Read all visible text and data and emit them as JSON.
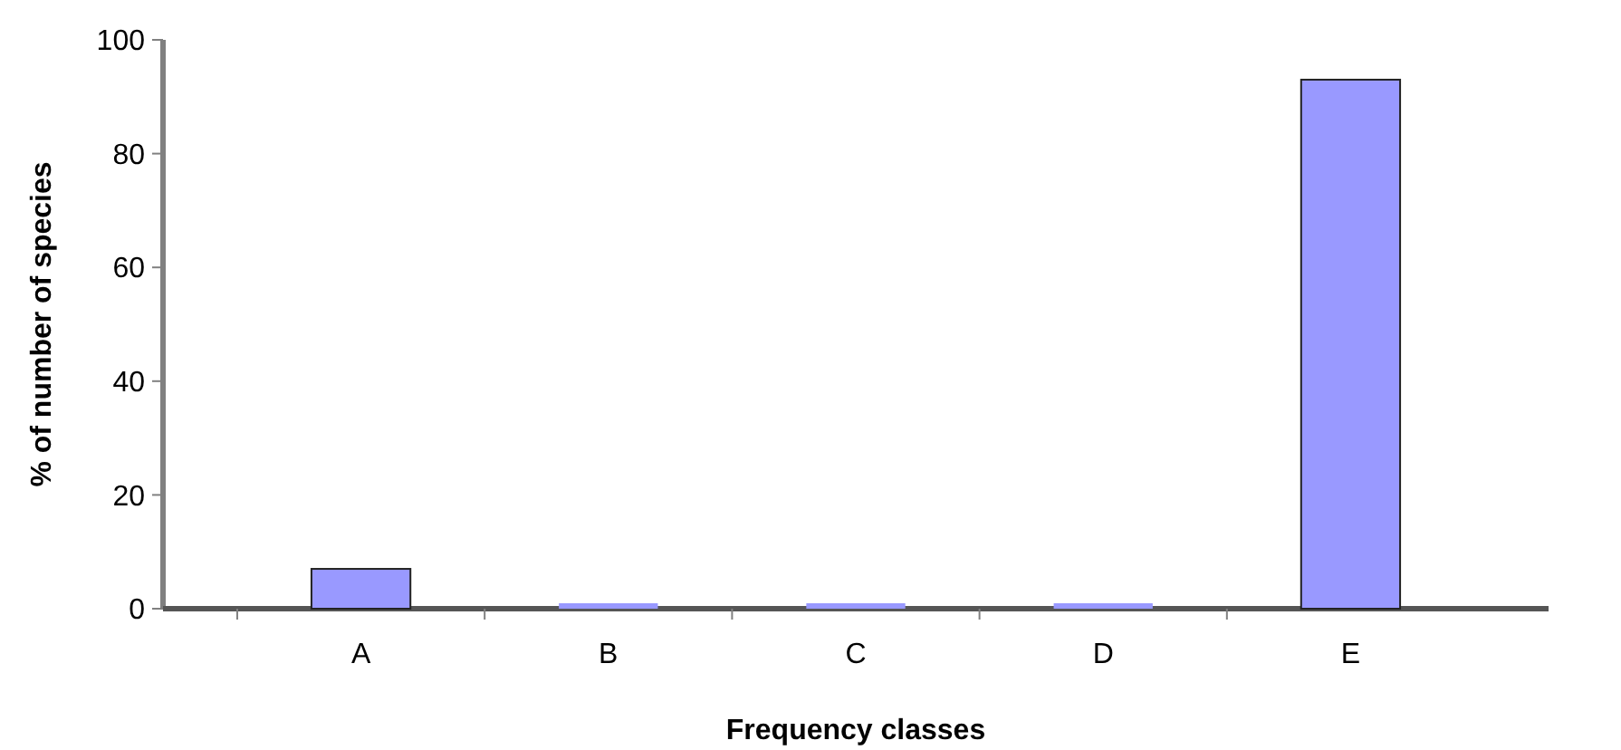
{
  "chart_data": {
    "type": "bar",
    "xlabel": "Frequency classes",
    "ylabel": "% of number of species",
    "categories": [
      "A",
      "B",
      "C",
      "D",
      "E"
    ],
    "values": [
      7,
      0,
      0,
      0,
      93
    ],
    "color": "#9999ff",
    "ylim": [
      0,
      100
    ],
    "yticks": [
      0,
      20,
      40,
      60,
      80,
      100
    ],
    "grid": false
  }
}
